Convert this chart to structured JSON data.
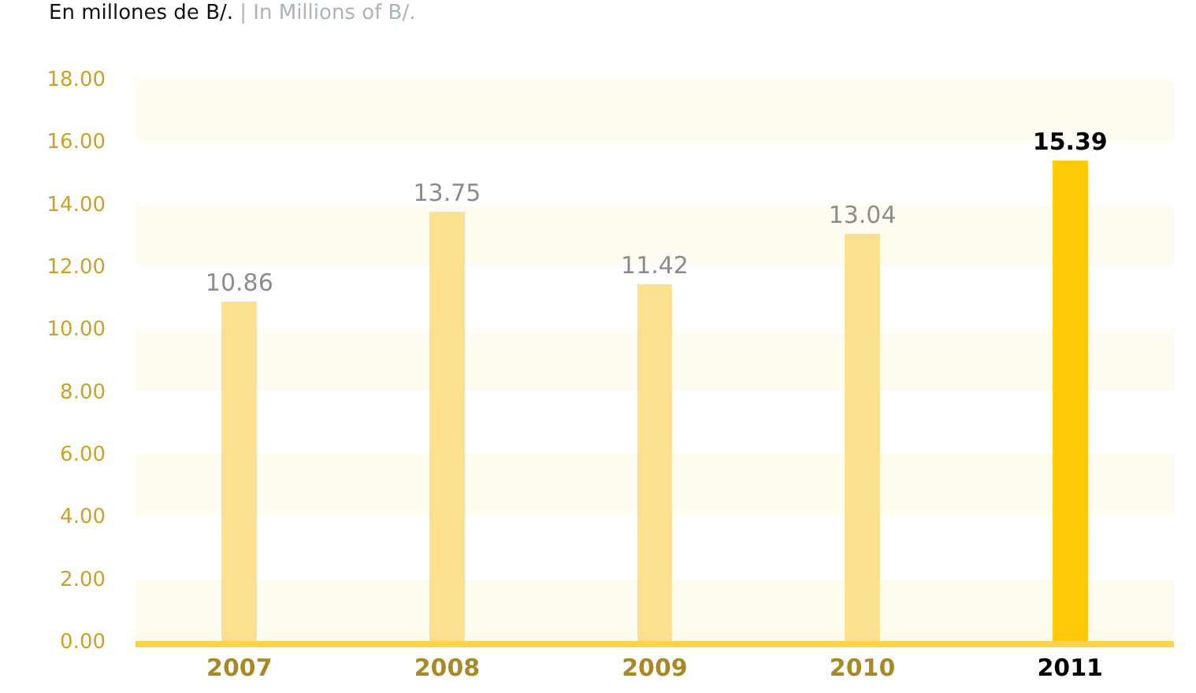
{
  "chart_data": {
    "type": "bar",
    "title": "En millones de B/.",
    "subtitle": "| In Millions of B/.",
    "categories": [
      "2007",
      "2008",
      "2009",
      "2010",
      "2011"
    ],
    "values": [
      10.86,
      13.75,
      11.42,
      13.04,
      15.39
    ],
    "colors": [
      "#fde08f",
      "#fde08f",
      "#fde08f",
      "#fde08f",
      "#ffc907"
    ],
    "data_labels": true,
    "ylim": [
      0,
      18
    ],
    "yticks": [
      {
        "value": 0,
        "label": "0.00"
      },
      {
        "value": 2,
        "label": "2.00"
      },
      {
        "value": 4,
        "label": "4.00"
      },
      {
        "value": 6,
        "label": "6.00"
      },
      {
        "value": 8,
        "label": "8.00"
      },
      {
        "value": 10,
        "label": "10.00"
      },
      {
        "value": 12,
        "label": "12.00"
      },
      {
        "value": 14,
        "label": "14.00"
      },
      {
        "value": 16,
        "label": "16.00"
      },
      {
        "value": 18,
        "label": "18.00"
      }
    ],
    "bands": [
      {
        "axis": "y",
        "from": 0,
        "to": 2,
        "color": "#fffdf1"
      },
      {
        "axis": "y",
        "from": 4,
        "to": 6,
        "color": "#fffdf1"
      },
      {
        "axis": "y",
        "from": 8,
        "to": 10,
        "color": "#fffdf1"
      },
      {
        "axis": "y",
        "from": 12,
        "to": 14,
        "color": "#fffdf1"
      },
      {
        "axis": "y",
        "from": 16,
        "to": 18,
        "color": "#fffdf1"
      }
    ],
    "grid": false,
    "legend": false
  }
}
